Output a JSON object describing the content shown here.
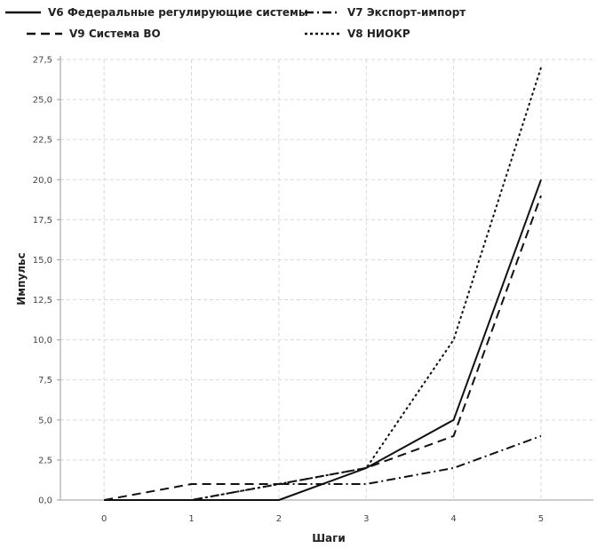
{
  "chart_data": {
    "type": "line",
    "title": "",
    "xlabel": "Шаги",
    "ylabel": "Импульс",
    "x": [
      0,
      1,
      2,
      3,
      4,
      5
    ],
    "xlim": [
      -0.5,
      5.6
    ],
    "ylim": [
      0,
      27.5
    ],
    "x_ticks": [
      "0",
      "1",
      "2",
      "3",
      "4",
      "5"
    ],
    "y_ticks": [
      "0,0",
      "2,5",
      "5,0",
      "7,5",
      "10,0",
      "12,5",
      "15,0",
      "17,5",
      "20,0",
      "22,5",
      "25,0",
      "27,5"
    ],
    "grid": true,
    "legend_position": "top",
    "series": [
      {
        "name": "V6 Федеральные регулирующие системы",
        "style": "solid",
        "values": [
          0,
          0,
          0,
          2,
          5,
          20
        ]
      },
      {
        "name": "V7 Экспорт-импорт",
        "style": "dashdot",
        "values": [
          0,
          0,
          1,
          1,
          2,
          4
        ]
      },
      {
        "name": "V9 Система ВО",
        "style": "dashed",
        "values": [
          0,
          1,
          1,
          2,
          4,
          19
        ]
      },
      {
        "name": "V8 НИОКР",
        "style": "dotted",
        "values": [
          0,
          0,
          1,
          2,
          10,
          27
        ]
      }
    ]
  }
}
